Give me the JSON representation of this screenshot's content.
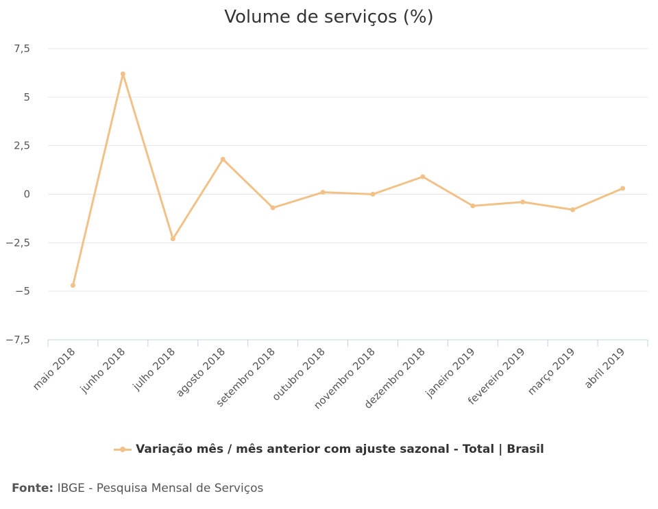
{
  "chart_data": {
    "type": "line",
    "title": "Volume de serviços (%)",
    "categories": [
      "maio 2018",
      "junho 2018",
      "julho 2018",
      "agosto 2018",
      "setembro 2018",
      "outubro 2018",
      "novembro 2018",
      "dezembro 2018",
      "janeiro 2019",
      "fevereiro 2019",
      "março 2019",
      "abril 2019"
    ],
    "series": [
      {
        "name": "Variação mês / mês anterior com ajuste sazonal - Total | Brasil",
        "values": [
          -4.7,
          6.2,
          -2.3,
          1.8,
          -0.7,
          0.1,
          0.0,
          0.9,
          -0.6,
          -0.4,
          -0.8,
          0.3
        ],
        "color": "#f1c187"
      }
    ],
    "y_ticks": [
      "7,5",
      "5",
      "2,5",
      "0",
      "−2,5",
      "−5",
      "−7,5"
    ],
    "ylim": [
      -7.5,
      7.5
    ],
    "grid": true,
    "legend_position": "bottom-center",
    "xlabel": "",
    "ylabel": ""
  },
  "source": {
    "label": "Fonte:",
    "text": "IBGE - Pesquisa Mensal de Serviços"
  }
}
